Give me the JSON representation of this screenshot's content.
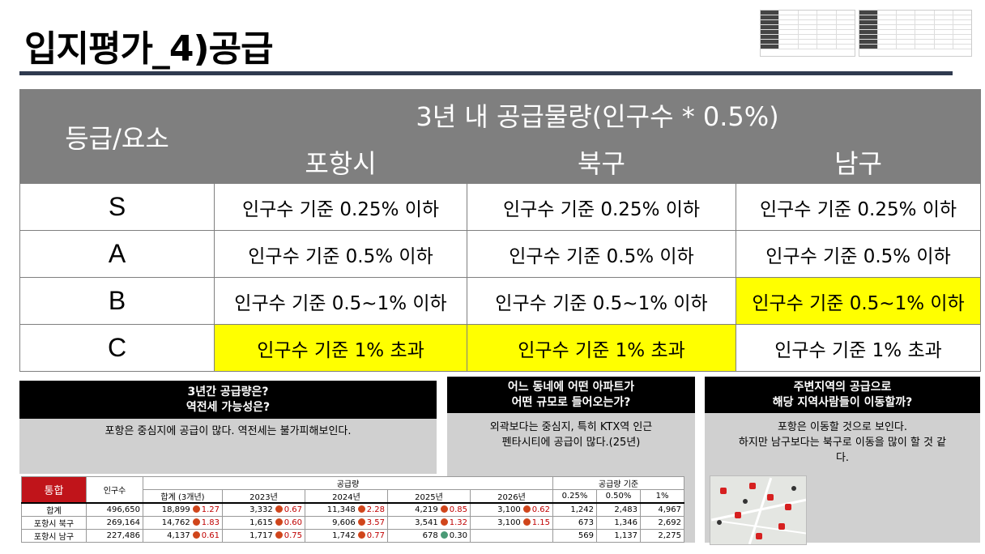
{
  "page": {
    "title": "입지평가_4)공급"
  },
  "grade_table": {
    "corner": "등급/요소",
    "header": "3년 내 공급물량(인구수 * 0.5%)",
    "columns": [
      "포항시",
      "북구",
      "남구"
    ],
    "rows": [
      {
        "grade": "S",
        "cells": [
          "인구수 기준 0.25% 이하",
          "인구수 기준 0.25% 이하",
          "인구수 기준 0.25% 이하"
        ],
        "highlight": [
          false,
          false,
          false
        ]
      },
      {
        "grade": "A",
        "cells": [
          "인구수 기준 0.5% 이하",
          "인구수 기준 0.5% 이하",
          "인구수 기준 0.5% 이하"
        ],
        "highlight": [
          false,
          false,
          false
        ]
      },
      {
        "grade": "B",
        "cells": [
          "인구수 기준 0.5~1% 이하",
          "인구수 기준 0.5~1% 이하",
          "인구수 기준 0.5~1% 이하"
        ],
        "highlight": [
          false,
          false,
          true
        ]
      },
      {
        "grade": "C",
        "cells": [
          "인구수 기준 1% 초과",
          "인구수 기준 1% 초과",
          "인구수 기준 1% 초과"
        ],
        "highlight": [
          true,
          true,
          false
        ]
      }
    ],
    "highlight_color": "#ffff00"
  },
  "panels": {
    "p1": {
      "head_line1": "3년간 공급량은?",
      "head_line2": "역전세 가능성은?",
      "body": "포항은 중심지에 공급이 많다. 역전세는 불가피해보인다."
    },
    "p2": {
      "head_line1": "어느 동네에 어떤 아파트가",
      "head_line2": "어떤 규모로 들어오는가?",
      "body_line1": "외곽보다는 중심지, 특히 KTX역 인근",
      "body_line2": "펜타시티에 공급이 많다.(25년)"
    },
    "p3": {
      "head_line1": "주변지역의 공급으로",
      "head_line2": "해당 지역사람들이 이동할까?",
      "body_line1": "포항은 이동할 것으로 보인다.",
      "body_line2": "하지만 남구보다는 북구로 이동을 많이 할 것 같",
      "body_line3": "다."
    }
  },
  "supply_table": {
    "tag": "통합",
    "h_population": "인구수",
    "h_supply": "공급량",
    "h_total": "합계 (3개년)",
    "years": [
      "2023년",
      "2024년",
      "2025년",
      "2026년"
    ],
    "h_criteria": "공급량 기준",
    "criteria": [
      "0.25%",
      "0.50%",
      "1%"
    ],
    "rows": [
      {
        "label": "합계",
        "pop": "496,650",
        "total": "18,899",
        "total_r": "1.27",
        "y": [
          [
            "3,332",
            "0.67"
          ],
          [
            "11,348",
            "2.28"
          ],
          [
            "4,219",
            "0.85"
          ],
          [
            "3,100",
            "0.62"
          ]
        ],
        "c": [
          "1,242",
          "2,483",
          "4,967"
        ]
      },
      {
        "label": "포항시 북구",
        "pop": "269,164",
        "total": "14,762",
        "total_r": "1.83",
        "y": [
          [
            "1,615",
            "0.60"
          ],
          [
            "9,606",
            "3.57"
          ],
          [
            "3,541",
            "1.32"
          ],
          [
            "3,100",
            "1.15"
          ]
        ],
        "c": [
          "673",
          "1,346",
          "2,692"
        ]
      },
      {
        "label": "포항시 남구",
        "pop": "227,486",
        "total": "4,137",
        "total_r": "0.61",
        "y": [
          [
            "1,717",
            "0.75"
          ],
          [
            "1,742",
            "0.77"
          ],
          [
            "678",
            "0.30"
          ],
          [
            "",
            ""
          ]
        ],
        "c": [
          "569",
          "1,137",
          "2,275"
        ]
      }
    ]
  }
}
